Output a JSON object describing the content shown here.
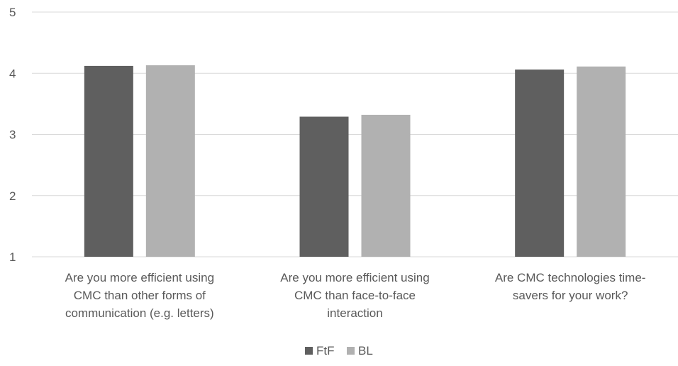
{
  "chart_data": {
    "type": "bar",
    "title": "",
    "xlabel": "",
    "ylabel": "",
    "ylim": [
      1,
      5
    ],
    "yticks": [
      1,
      2,
      3,
      4,
      5
    ],
    "grid": true,
    "legend_position": "bottom",
    "categories": [
      [
        "Are you more efficient using",
        "CMC than other forms of",
        "communication (e.g. letters)"
      ],
      [
        "Are you more efficient using",
        "CMC than face-to-face",
        "interaction"
      ],
      [
        "Are CMC technologies time-",
        "savers for your work?"
      ]
    ],
    "series": [
      {
        "name": "FtF",
        "color": "#5f5f5f",
        "values": [
          4.12,
          3.29,
          4.06
        ]
      },
      {
        "name": "BL",
        "color": "#b1b1b1",
        "values": [
          4.13,
          3.32,
          4.11
        ]
      }
    ],
    "gridline_color": "#d9d9d9",
    "text_color": "#595959"
  }
}
